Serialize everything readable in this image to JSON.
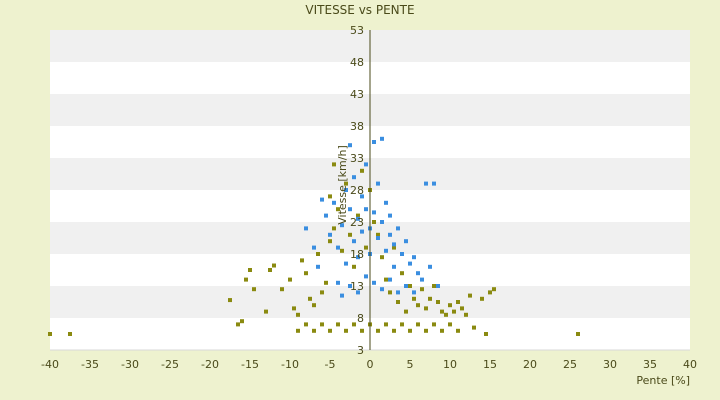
{
  "chart_data": {
    "type": "scatter",
    "title": "VITESSE vs PENTE",
    "xlabel": "Pente [%]",
    "ylabel": "Vitesse [km/h]",
    "xlim": [
      -40,
      40
    ],
    "ylim": [
      3,
      53
    ],
    "x_ticks": [
      "-40",
      "-35",
      "-30",
      "-25",
      "-20",
      "-15",
      "-10",
      "-5",
      "0",
      "5",
      "10",
      "15",
      "20",
      "25",
      "30",
      "35",
      "40"
    ],
    "y_ticks": [
      "3",
      "8",
      "13",
      "18",
      "23",
      "28",
      "33",
      "38",
      "43",
      "48",
      "53"
    ],
    "grid": "horizontal bands",
    "legend": "none",
    "series": [
      {
        "color": "#8a8a10",
        "points": [
          [
            -40.0,
            5.5
          ],
          [
            -37.5,
            5.5
          ],
          [
            -17.5,
            10.8
          ],
          [
            -16.5,
            7.0
          ],
          [
            -16.0,
            7.5
          ],
          [
            -15.5,
            14.0
          ],
          [
            -15.0,
            15.5
          ],
          [
            -14.5,
            12.5
          ],
          [
            -13.0,
            9.0
          ],
          [
            -12.5,
            15.5
          ],
          [
            -12.0,
            16.2
          ],
          [
            -11.0,
            12.5
          ],
          [
            -10.0,
            14.0
          ],
          [
            -9.5,
            9.5
          ],
          [
            -9.0,
            8.5
          ],
          [
            -8.5,
            17.0
          ],
          [
            -8.0,
            15.0
          ],
          [
            -7.5,
            11.0
          ],
          [
            -7.0,
            10.0
          ],
          [
            -6.5,
            18.0
          ],
          [
            -6.0,
            12.0
          ],
          [
            -5.5,
            13.5
          ],
          [
            -5.0,
            20.0
          ],
          [
            -5.0,
            27.0
          ],
          [
            -4.5,
            22.0
          ],
          [
            -4.5,
            32.0
          ],
          [
            -4.0,
            25.0
          ],
          [
            -3.5,
            18.5
          ],
          [
            -3.0,
            29.0
          ],
          [
            -2.5,
            21.0
          ],
          [
            -2.0,
            16.0
          ],
          [
            -1.5,
            24.0
          ],
          [
            -1.0,
            31.0
          ],
          [
            -0.5,
            19.0
          ],
          [
            0.0,
            28.0
          ],
          [
            0.5,
            23.0
          ],
          [
            1.0,
            21.0
          ],
          [
            1.5,
            17.5
          ],
          [
            2.0,
            14.0
          ],
          [
            2.5,
            12.0
          ],
          [
            3.0,
            19.0
          ],
          [
            3.5,
            10.5
          ],
          [
            4.0,
            15.0
          ],
          [
            4.5,
            9.0
          ],
          [
            5.0,
            13.0
          ],
          [
            5.5,
            11.0
          ],
          [
            6.0,
            10.0
          ],
          [
            6.5,
            12.5
          ],
          [
            7.0,
            9.5
          ],
          [
            7.5,
            11.0
          ],
          [
            8.0,
            13.0
          ],
          [
            8.5,
            10.5
          ],
          [
            9.0,
            9.0
          ],
          [
            9.5,
            8.5
          ],
          [
            10.0,
            10.0
          ],
          [
            10.5,
            9.0
          ],
          [
            11.0,
            10.5
          ],
          [
            11.5,
            9.5
          ],
          [
            12.0,
            8.5
          ],
          [
            12.5,
            11.5
          ],
          [
            13.0,
            6.5
          ],
          [
            14.0,
            11.0
          ],
          [
            14.5,
            5.5
          ],
          [
            15.0,
            12.0
          ],
          [
            15.5,
            12.5
          ],
          [
            26.0,
            5.5
          ],
          [
            -9.0,
            6.0
          ],
          [
            -7.0,
            6.0
          ],
          [
            -5.0,
            6.0
          ],
          [
            -3.0,
            6.0
          ],
          [
            -1.0,
            6.0
          ],
          [
            1.0,
            6.0
          ],
          [
            3.0,
            6.0
          ],
          [
            5.0,
            6.0
          ],
          [
            7.0,
            6.0
          ],
          [
            9.0,
            6.0
          ],
          [
            11.0,
            6.0
          ],
          [
            -8.0,
            7.0
          ],
          [
            -6.0,
            7.0
          ],
          [
            -4.0,
            7.0
          ],
          [
            -2.0,
            7.0
          ],
          [
            0.0,
            7.0
          ],
          [
            2.0,
            7.0
          ],
          [
            4.0,
            7.0
          ],
          [
            6.0,
            7.0
          ],
          [
            8.0,
            7.0
          ],
          [
            10.0,
            7.0
          ]
        ]
      },
      {
        "color": "#3a8ee0",
        "points": [
          [
            -5.5,
            24.0
          ],
          [
            -5.0,
            21.0
          ],
          [
            -4.5,
            26.0
          ],
          [
            -4.0,
            19.0
          ],
          [
            -3.5,
            22.5
          ],
          [
            -3.0,
            28.0
          ],
          [
            -3.0,
            16.5
          ],
          [
            -2.5,
            35.0
          ],
          [
            -2.5,
            25.0
          ],
          [
            -2.0,
            20.0
          ],
          [
            -2.0,
            30.0
          ],
          [
            -1.5,
            23.5
          ],
          [
            -1.5,
            17.5
          ],
          [
            -1.0,
            27.0
          ],
          [
            -1.0,
            21.5
          ],
          [
            -0.5,
            25.0
          ],
          [
            -0.5,
            32.0
          ],
          [
            0.0,
            22.0
          ],
          [
            0.0,
            18.0
          ],
          [
            0.5,
            35.5
          ],
          [
            0.5,
            24.5
          ],
          [
            1.0,
            29.0
          ],
          [
            1.0,
            20.5
          ],
          [
            1.5,
            36.0
          ],
          [
            1.5,
            23.0
          ],
          [
            2.0,
            26.0
          ],
          [
            2.0,
            18.5
          ],
          [
            2.5,
            21.0
          ],
          [
            2.5,
            24.0
          ],
          [
            3.0,
            19.5
          ],
          [
            3.0,
            16.0
          ],
          [
            3.5,
            22.0
          ],
          [
            4.0,
            18.0
          ],
          [
            4.5,
            20.0
          ],
          [
            5.0,
            16.5
          ],
          [
            5.5,
            17.5
          ],
          [
            6.0,
            15.0
          ],
          [
            6.5,
            14.0
          ],
          [
            7.0,
            29.0
          ],
          [
            7.5,
            16.0
          ],
          [
            8.0,
            29.0
          ],
          [
            8.5,
            13.0
          ],
          [
            -8.0,
            22.0
          ],
          [
            -7.0,
            19.0
          ],
          [
            -6.5,
            16.0
          ],
          [
            -6.0,
            26.5
          ],
          [
            -4.0,
            13.5
          ],
          [
            -3.5,
            11.5
          ],
          [
            -2.5,
            13.0
          ],
          [
            -1.5,
            12.0
          ],
          [
            -0.5,
            14.5
          ],
          [
            0.5,
            13.5
          ],
          [
            1.5,
            12.5
          ],
          [
            2.5,
            14.0
          ],
          [
            3.5,
            12.0
          ],
          [
            4.5,
            13.0
          ],
          [
            5.5,
            12.0
          ]
        ]
      }
    ]
  }
}
